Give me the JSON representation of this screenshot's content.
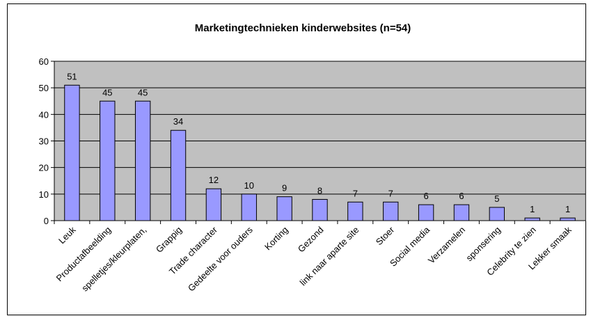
{
  "chart_data": {
    "type": "bar",
    "title": "Marketingtechnieken kinderwebsites (n=54)",
    "categories": [
      "Leuk",
      "Productafbeelding",
      "spelletjes/kleurplaten,",
      "Grappig",
      "Trade character",
      "Gedeelte voor ouders",
      "Korting",
      "Gezond",
      "link naar aparte site",
      "Stoer",
      "Social media",
      "Verzamelen",
      "sponsering",
      "Celebrity te zien",
      "Lekker smaak"
    ],
    "values": [
      51,
      45,
      45,
      34,
      12,
      10,
      9,
      8,
      7,
      7,
      6,
      6,
      5,
      1,
      1
    ],
    "color": "#9999ff",
    "ylim": [
      0,
      60
    ],
    "yticks": [
      0,
      10,
      20,
      30,
      40,
      50,
      60
    ],
    "grid": true
  }
}
